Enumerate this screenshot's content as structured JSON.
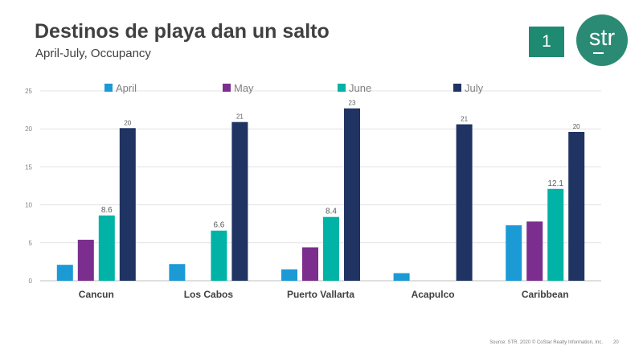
{
  "slide": {
    "title": "Destinos de playa dan un salto",
    "subtitle": "April-July, Occupancy",
    "page_box": "1",
    "logo_text": "str",
    "source": "Source: STR. 2020 © CoStar Realty Information, Inc.",
    "slide_number": "20"
  },
  "chart_data": {
    "type": "bar",
    "title": "",
    "xlabel": "",
    "ylabel": "",
    "ylim": [
      0,
      25
    ],
    "yticks": [
      0,
      5,
      10,
      15,
      20,
      25
    ],
    "grid": true,
    "legend_position": "top",
    "categories": [
      "Cancun",
      "Los Cabos",
      "Puerto Vallarta",
      "Acapulco",
      "Caribbean"
    ],
    "series": [
      {
        "name": "April",
        "color": "#1b9ad6",
        "values": [
          2.1,
          2.2,
          1.5,
          1.0,
          7.3
        ],
        "labels": [
          "",
          "",
          "",
          "",
          ""
        ]
      },
      {
        "name": "May",
        "color": "#7b2e8d",
        "values": [
          5.4,
          null,
          4.4,
          null,
          7.8
        ],
        "labels": [
          "",
          "",
          "",
          "",
          ""
        ]
      },
      {
        "name": "June",
        "color": "#00b3a6",
        "values": [
          8.6,
          6.6,
          8.4,
          null,
          12.1
        ],
        "labels": [
          "8.6",
          "6.6",
          "8.4",
          "",
          "12.1"
        ]
      },
      {
        "name": "July",
        "color": "#1f3462",
        "values": [
          20.1,
          20.9,
          22.7,
          20.6,
          19.6
        ],
        "labels": [
          "20",
          "21",
          "23",
          "21",
          "20"
        ]
      }
    ]
  }
}
